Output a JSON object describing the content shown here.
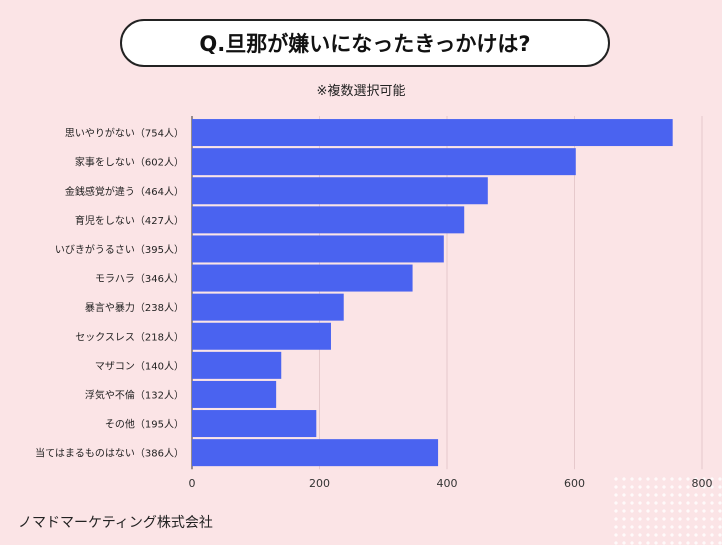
{
  "title": "Q.旦那が嫌いになったきっかけは?",
  "subtitle": "※複数選択可能",
  "footer": "ノマドマーケティング株式会社",
  "colors": {
    "bar": "#4a63f0",
    "background": "#fbe4e6",
    "grid": "#e6c9cc"
  },
  "chart_data": {
    "type": "bar",
    "orientation": "horizontal",
    "categories": [
      "思いやりがない（754人）",
      "家事をしない（602人）",
      "金銭感覚が違う（464人）",
      "育児をしない（427人）",
      "いびきがうるさい（395人）",
      "モラハラ（346人）",
      "暴言や暴力（238人）",
      "セックスレス（218人）",
      "マザコン（140人）",
      "浮気や不倫（132人）",
      "その他（195人）",
      "当てはまるものはない（386人）"
    ],
    "values": [
      754,
      602,
      464,
      427,
      395,
      346,
      238,
      218,
      140,
      132,
      195,
      386
    ],
    "xlim": [
      0,
      800
    ],
    "xticks": [
      "0",
      "200",
      "400",
      "600",
      "800"
    ],
    "grid": true
  }
}
